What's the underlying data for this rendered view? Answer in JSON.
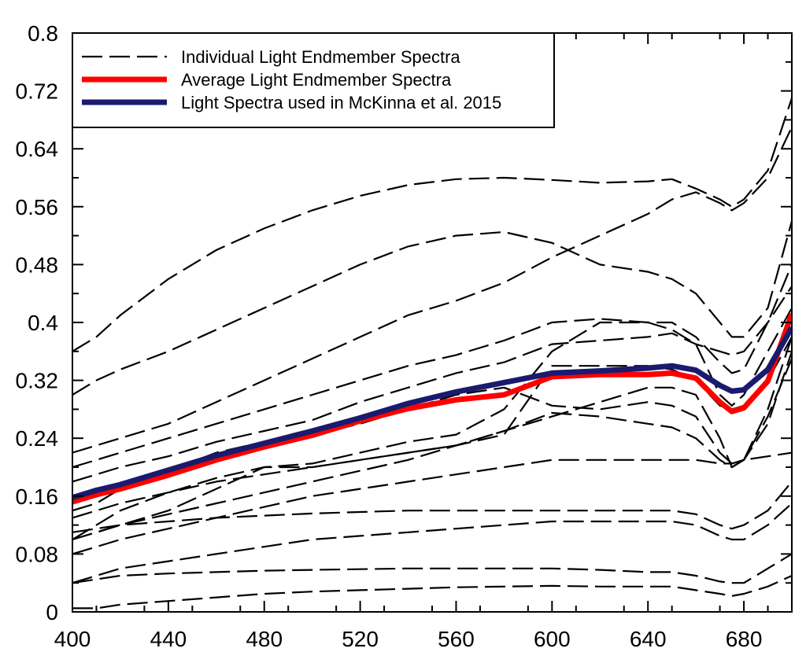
{
  "chart_data": {
    "type": "line",
    "title": "",
    "xlabel": "",
    "ylabel": "",
    "xlim": [
      400,
      700
    ],
    "ylim": [
      0,
      0.8
    ],
    "x_ticks": [
      400,
      440,
      480,
      520,
      560,
      600,
      640,
      680
    ],
    "x_tick_labels": [
      "400",
      "440",
      "480",
      "520",
      "560",
      "600",
      "640",
      "680"
    ],
    "y_ticks": [
      0,
      0.08,
      0.16,
      0.24,
      0.32,
      0.4,
      0.48,
      0.56,
      0.64,
      0.72,
      0.8
    ],
    "y_tick_labels": [
      "0",
      "0.08",
      "0.16",
      "0.24",
      "0.32",
      "0.4",
      "0.48",
      "0.56",
      "0.64",
      "0.72",
      "0.8"
    ],
    "grid": false,
    "legend_position": "top-left",
    "legend": [
      {
        "label": "Individual Light Endmember Spectra",
        "color": "#000000",
        "style": "dashed"
      },
      {
        "label": "Average Light Endmember Spectra",
        "color": "#ff0000",
        "style": "solid"
      },
      {
        "label": "Light Spectra used in McKinna et al. 2015",
        "color": "#1a1a6e",
        "style": "solid"
      }
    ],
    "x": [
      400,
      410,
      420,
      440,
      460,
      480,
      500,
      520,
      540,
      560,
      580,
      600,
      620,
      640,
      650,
      660,
      670,
      675,
      680,
      690,
      700
    ],
    "series": [
      {
        "name": "Light Spectra used in McKinna et al. 2015",
        "color": "#1a1a6e",
        "values": [
          0.158,
          0.168,
          0.176,
          0.196,
          0.216,
          0.233,
          0.25,
          0.268,
          0.288,
          0.304,
          0.317,
          0.33,
          0.333,
          0.337,
          0.34,
          0.334,
          0.313,
          0.305,
          0.307,
          0.335,
          0.393
        ]
      },
      {
        "name": "Average Light Endmember Spectra",
        "color": "#ff0000",
        "values": [
          0.152,
          0.162,
          0.17,
          0.189,
          0.21,
          0.228,
          0.244,
          0.264,
          0.281,
          0.293,
          0.3,
          0.325,
          0.328,
          0.328,
          0.33,
          0.323,
          0.29,
          0.277,
          0.282,
          0.319,
          0.412
        ]
      },
      {
        "values": [
          0.36,
          0.38,
          0.41,
          0.46,
          0.5,
          0.53,
          0.555,
          0.575,
          0.59,
          0.598,
          0.6,
          0.597,
          0.593,
          0.595,
          0.598,
          0.585,
          0.57,
          0.56,
          0.57,
          0.61,
          0.71
        ]
      },
      {
        "values": [
          0.3,
          0.32,
          0.335,
          0.36,
          0.39,
          0.42,
          0.45,
          0.48,
          0.505,
          0.52,
          0.525,
          0.51,
          0.48,
          0.47,
          0.46,
          0.44,
          0.4,
          0.38,
          0.38,
          0.42,
          0.54
        ]
      },
      {
        "values": [
          0.22,
          0.23,
          0.24,
          0.26,
          0.29,
          0.32,
          0.35,
          0.38,
          0.41,
          0.43,
          0.455,
          0.49,
          0.52,
          0.55,
          0.57,
          0.58,
          0.565,
          0.555,
          0.565,
          0.6,
          0.67
        ]
      },
      {
        "values": [
          0.2,
          0.21,
          0.22,
          0.24,
          0.26,
          0.28,
          0.3,
          0.32,
          0.34,
          0.355,
          0.375,
          0.4,
          0.405,
          0.4,
          0.4,
          0.38,
          0.345,
          0.33,
          0.335,
          0.4,
          0.48
        ]
      },
      {
        "values": [
          0.18,
          0.19,
          0.2,
          0.215,
          0.235,
          0.25,
          0.265,
          0.29,
          0.31,
          0.33,
          0.345,
          0.37,
          0.375,
          0.38,
          0.385,
          0.37,
          0.36,
          0.355,
          0.36,
          0.4,
          0.45
        ]
      },
      {
        "values": [
          0.14,
          0.15,
          0.17,
          0.195,
          0.22,
          0.235,
          0.245,
          0.26,
          0.28,
          0.3,
          0.31,
          0.285,
          0.28,
          0.29,
          0.285,
          0.27,
          0.22,
          0.205,
          0.21,
          0.26,
          0.36
        ]
      },
      {
        "values": [
          0.1,
          0.12,
          0.14,
          0.165,
          0.185,
          0.2,
          0.205,
          0.22,
          0.235,
          0.245,
          0.28,
          0.36,
          0.4,
          0.4,
          0.39,
          0.37,
          0.3,
          0.285,
          0.3,
          0.36,
          0.42
        ]
      },
      {
        "values": [
          0.13,
          0.14,
          0.15,
          0.165,
          0.18,
          0.19,
          0.2,
          0.21,
          0.22,
          0.23,
          0.245,
          0.34,
          0.34,
          0.34,
          0.335,
          0.32,
          0.285,
          0.28,
          0.285,
          0.32,
          0.38
        ]
      },
      {
        "values": [
          0.1,
          0.11,
          0.12,
          0.135,
          0.15,
          0.165,
          0.18,
          0.195,
          0.21,
          0.23,
          0.25,
          0.275,
          0.27,
          0.26,
          0.255,
          0.24,
          0.21,
          0.2,
          0.21,
          0.27,
          0.35
        ]
      },
      {
        "values": [
          0.08,
          0.09,
          0.1,
          0.115,
          0.13,
          0.145,
          0.16,
          0.17,
          0.18,
          0.19,
          0.2,
          0.21,
          0.21,
          0.21,
          0.21,
          0.21,
          0.205,
          0.205,
          0.21,
          0.215,
          0.22
        ]
      },
      {
        "values": [
          0.11,
          0.115,
          0.12,
          0.125,
          0.13,
          0.133,
          0.136,
          0.138,
          0.14,
          0.14,
          0.14,
          0.14,
          0.14,
          0.14,
          0.14,
          0.135,
          0.12,
          0.115,
          0.12,
          0.14,
          0.18
        ]
      },
      {
        "values": [
          0.04,
          0.05,
          0.06,
          0.07,
          0.08,
          0.09,
          0.1,
          0.105,
          0.11,
          0.115,
          0.12,
          0.125,
          0.125,
          0.125,
          0.125,
          0.12,
          0.105,
          0.1,
          0.1,
          0.12,
          0.15
        ]
      },
      {
        "values": [
          0.04,
          0.045,
          0.05,
          0.053,
          0.055,
          0.057,
          0.058,
          0.059,
          0.06,
          0.06,
          0.06,
          0.06,
          0.058,
          0.055,
          0.055,
          0.05,
          0.042,
          0.04,
          0.04,
          0.06,
          0.08
        ]
      },
      {
        "values": [
          0.005,
          0.005,
          0.01,
          0.015,
          0.02,
          0.025,
          0.028,
          0.03,
          0.032,
          0.034,
          0.035,
          0.036,
          0.035,
          0.035,
          0.035,
          0.03,
          0.025,
          0.022,
          0.025,
          0.035,
          0.05
        ]
      },
      {
        "values": [
          0.1,
          0.11,
          0.12,
          0.14,
          0.17,
          0.2,
          0.2,
          0.21,
          0.22,
          0.23,
          0.25,
          0.27,
          0.29,
          0.31,
          0.31,
          0.3,
          0.24,
          0.2,
          0.21,
          0.28,
          0.38
        ]
      }
    ]
  }
}
